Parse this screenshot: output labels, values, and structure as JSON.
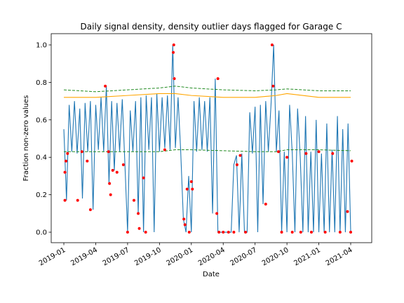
{
  "chart_data": {
    "type": "line",
    "title": "Daily signal density, density outlier days flagged for Garage C",
    "x_label": "Date",
    "y_label": "Fraction non-zero values",
    "xlim": [
      -1.19,
      28.98
    ],
    "ylim": [
      -0.056,
      1.06
    ],
    "xticks": [
      {
        "value": 0,
        "label": "2019-01"
      },
      {
        "value": 3,
        "label": "2019-04"
      },
      {
        "value": 6,
        "label": "2019-07"
      },
      {
        "value": 9,
        "label": "2019-10"
      },
      {
        "value": 12,
        "label": "2020-01"
      },
      {
        "value": 15,
        "label": "2020-04"
      },
      {
        "value": 18,
        "label": "2020-07"
      },
      {
        "value": 21,
        "label": "2020-10"
      },
      {
        "value": 24,
        "label": "2021-01"
      },
      {
        "value": 27,
        "label": "2021-04"
      }
    ],
    "yticks": [
      {
        "value": 0,
        "label": "0.0"
      },
      {
        "value": 0.2,
        "label": "0.2"
      },
      {
        "value": 0.4,
        "label": "0.4"
      },
      {
        "value": 0.6,
        "label": "0.6"
      },
      {
        "value": 0.8,
        "label": "0.8"
      },
      {
        "value": 1,
        "label": "1.0"
      }
    ],
    "series": [
      {
        "color": "#1f77b4",
        "style": "solid",
        "x": [
          0,
          0.25,
          0.5,
          0.75,
          1,
          1.25,
          1.5,
          1.75,
          2,
          2.25,
          2.5,
          2.75,
          3,
          3.25,
          3.5,
          3.75,
          4,
          4.25,
          4.5,
          4.75,
          5,
          5.25,
          5.5,
          5.75,
          6,
          6.25,
          6.5,
          6.75,
          7,
          7.25,
          7.5,
          7.75,
          8,
          8.25,
          8.5,
          8.75,
          9,
          9.25,
          9.5,
          9.75,
          10,
          10.25,
          10.5,
          10.75,
          11,
          11.25,
          11.5,
          11.75,
          12,
          12.25,
          12.5,
          12.75,
          13,
          13.25,
          13.5,
          13.75,
          14,
          14.25,
          14.5,
          14.75,
          15,
          15.25,
          15.5,
          15.75,
          16,
          16.25,
          16.5,
          16.75,
          17,
          17.25,
          17.5,
          17.75,
          18,
          18.25,
          18.5,
          18.75,
          19,
          19.25,
          19.5,
          19.75,
          20,
          20.25,
          20.5,
          20.75,
          21,
          21.25,
          21.5,
          21.75,
          22,
          22.25,
          22.5,
          22.75,
          23,
          23.25,
          23.5,
          23.75,
          24,
          24.25,
          24.5,
          24.75,
          25,
          25.25,
          25.5,
          25.75,
          26,
          26.25,
          26.5,
          26.75,
          27
        ],
        "values": [
          0.55,
          0.17,
          0.68,
          0.43,
          0.7,
          0.42,
          0.66,
          0.18,
          0.69,
          0.43,
          0.7,
          0.12,
          0.68,
          0.44,
          0.72,
          0.43,
          0.78,
          0.26,
          0.7,
          0.33,
          0.69,
          0.43,
          0.71,
          0.36,
          0,
          0.65,
          0.43,
          0.7,
          0.1,
          0.72,
          0,
          0.73,
          0.44,
          0.72,
          0,
          0.74,
          0.43,
          0.72,
          0.45,
          0.73,
          0.44,
          1,
          0.45,
          0.72,
          0.43,
          0.07,
          0,
          0.3,
          0,
          0.7,
          0.43,
          0.72,
          0.44,
          0.7,
          0.43,
          0.72,
          0.1,
          0.82,
          0,
          0,
          0,
          0,
          0,
          0,
          0.36,
          0.41,
          0,
          0.42,
          0,
          0,
          0.64,
          0.42,
          0.67,
          0,
          0.68,
          0.15,
          0.7,
          0.43,
          0.68,
          1,
          0.43,
          0.65,
          0,
          0.43,
          0,
          0.68,
          0.42,
          0,
          0.66,
          0.4,
          0,
          0.62,
          0,
          0.43,
          0,
          0.6,
          0,
          0.42,
          0,
          0.58,
          0,
          0.44,
          0,
          0.62,
          0,
          0.55,
          0,
          0.58,
          0
        ]
      },
      {
        "color": "#ffa500",
        "style": "solid",
        "x": [
          0,
          3,
          6,
          9,
          10.5,
          12,
          15,
          18,
          20,
          21,
          24,
          27
        ],
        "values": [
          0.72,
          0.72,
          0.73,
          0.74,
          0.74,
          0.73,
          0.72,
          0.72,
          0.73,
          0.74,
          0.72,
          0.72
        ]
      },
      {
        "color": "#228b22",
        "style": "dashed",
        "x": [
          0,
          3,
          6,
          9,
          10.5,
          12,
          15,
          18,
          20,
          21,
          24,
          27
        ],
        "values": [
          0.76,
          0.75,
          0.76,
          0.77,
          0.78,
          0.77,
          0.76,
          0.755,
          0.76,
          0.765,
          0.755,
          0.755
        ]
      },
      {
        "color": "#228b22",
        "style": "dashed",
        "x": [
          0,
          3,
          6,
          9,
          10.5,
          12,
          15,
          18,
          20,
          21,
          24,
          27
        ],
        "values": [
          0.43,
          0.43,
          0.43,
          0.43,
          0.44,
          0.44,
          0.435,
          0.43,
          0.43,
          0.44,
          0.44,
          0.435
        ]
      },
      {
        "color": "#ff0000",
        "style": "points",
        "x": [
          0.1,
          0.1,
          0.2,
          0.35,
          1.3,
          1.7,
          2.2,
          2.5,
          3.9,
          4.2,
          4.3,
          4.4,
          4.6,
          5,
          5.6,
          6,
          6.6,
          7,
          7.1,
          7.5,
          7.7,
          9.5,
          10.3,
          10.35,
          10.4,
          11.3,
          11.4,
          11.6,
          11.8,
          12,
          12.1,
          14.4,
          14.5,
          14.6,
          15,
          15.5,
          16,
          16.3,
          16.6,
          17.1,
          19,
          19.6,
          19.7,
          20.2,
          20.5,
          21,
          21.5,
          22.3,
          22.8,
          23.3,
          24,
          24.6,
          25.3,
          26,
          26.7,
          27,
          27.1
        ],
        "values": [
          0.17,
          0.32,
          0.38,
          0.42,
          0.17,
          0.43,
          0.38,
          0.12,
          0.78,
          0.43,
          0.26,
          0.2,
          0.33,
          0.32,
          0.36,
          0,
          0.17,
          0.1,
          0.02,
          0.29,
          0,
          0.44,
          0.96,
          1,
          0.82,
          0.07,
          0.04,
          0.23,
          0,
          0.27,
          0.23,
          0.1,
          0.82,
          0,
          0,
          0,
          0,
          0.36,
          0.41,
          0,
          0.15,
          1,
          0.78,
          0.43,
          0,
          0.4,
          0,
          0,
          0.42,
          0,
          0.43,
          0,
          0.42,
          0,
          0.11,
          0,
          0.38
        ]
      }
    ]
  }
}
